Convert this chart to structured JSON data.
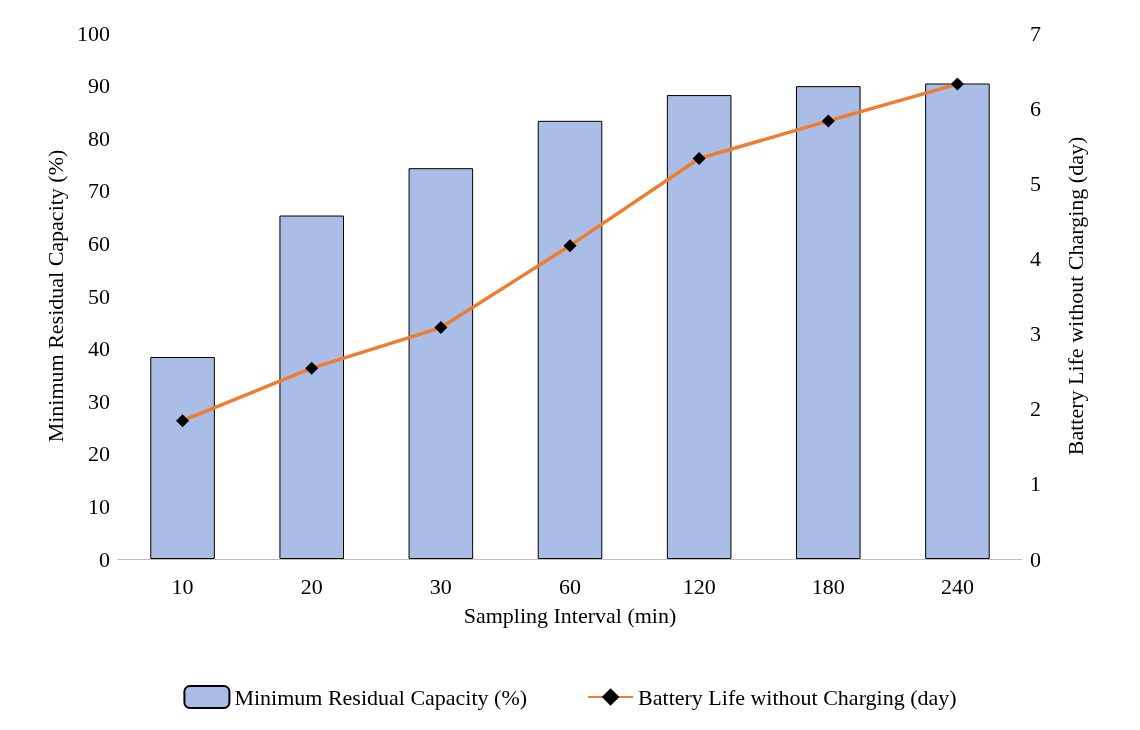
{
  "chart_data": {
    "type": "bar",
    "xlabel": "Sampling Interval (min)",
    "ylabel": "Minimum Residual Capacity (%)",
    "y2label": "Battery Life without Charging (day)",
    "categories": [
      "10",
      "20",
      "30",
      "60",
      "120",
      "180",
      "240"
    ],
    "series": [
      {
        "name": "Minimum Residual Capacity (%)",
        "color": "#a9bde6",
        "values": [
          38.4,
          65.3,
          74.3,
          83.3,
          88.2,
          89.9,
          90.4
        ]
      },
      {
        "name": "Battery Life without Charging (day)",
        "type": "line",
        "axis": "y2",
        "color": "#ed7d31",
        "marker": "diamond",
        "values": [
          1.84,
          2.54,
          3.08,
          4.17,
          5.33,
          5.83,
          6.32
        ]
      }
    ],
    "ylim": [
      0,
      100
    ],
    "yticks": [
      0,
      10,
      20,
      30,
      40,
      50,
      60,
      70,
      80,
      90,
      100
    ],
    "y2lim": [
      0,
      7
    ],
    "y2ticks": [
      0,
      1,
      2,
      3,
      4,
      5,
      6,
      7
    ],
    "grid": false,
    "legend": "bottom"
  }
}
